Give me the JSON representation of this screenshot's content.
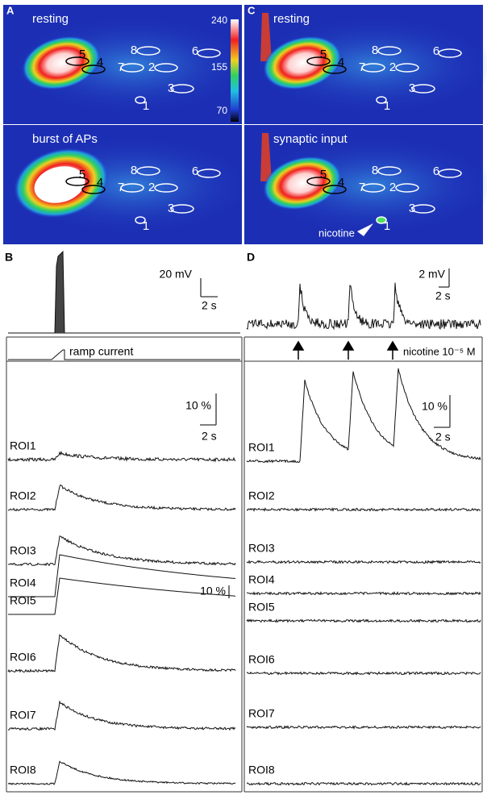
{
  "panel_a": {
    "label": "A",
    "image_captions": [
      "resting",
      "burst of APs"
    ],
    "colorbar_labels": [
      "240",
      "155",
      "70"
    ],
    "roi_labels": [
      "1",
      "2",
      "3",
      "4",
      "5",
      "6",
      "7",
      "8"
    ]
  },
  "panel_c": {
    "label": "C",
    "image_captions": [
      "resting",
      "synaptic input"
    ],
    "annotation": "nicotine"
  },
  "panel_b": {
    "label": "B",
    "voltage_scale": "20 mV",
    "time_scale": "2 s",
    "stimulus": "ramp current",
    "fluorescence_scale": "10 %",
    "fluorescence_time_scale": "2 s",
    "inset_scale": "10 %",
    "traces": [
      "ROI1",
      "ROI2",
      "ROI3",
      "ROI4",
      "ROI5",
      "ROI6",
      "ROI7",
      "ROI8"
    ]
  },
  "panel_d": {
    "label": "D",
    "voltage_scale": "2 mV",
    "time_scale": "2 s",
    "stimulus": "nicotine 10⁻⁵ M",
    "fluorescence_scale": "10 %",
    "fluorescence_time_scale": "2 s",
    "traces": [
      "ROI1",
      "ROI2",
      "ROI3",
      "ROI4",
      "ROI5",
      "ROI6",
      "ROI7",
      "ROI8"
    ]
  }
}
